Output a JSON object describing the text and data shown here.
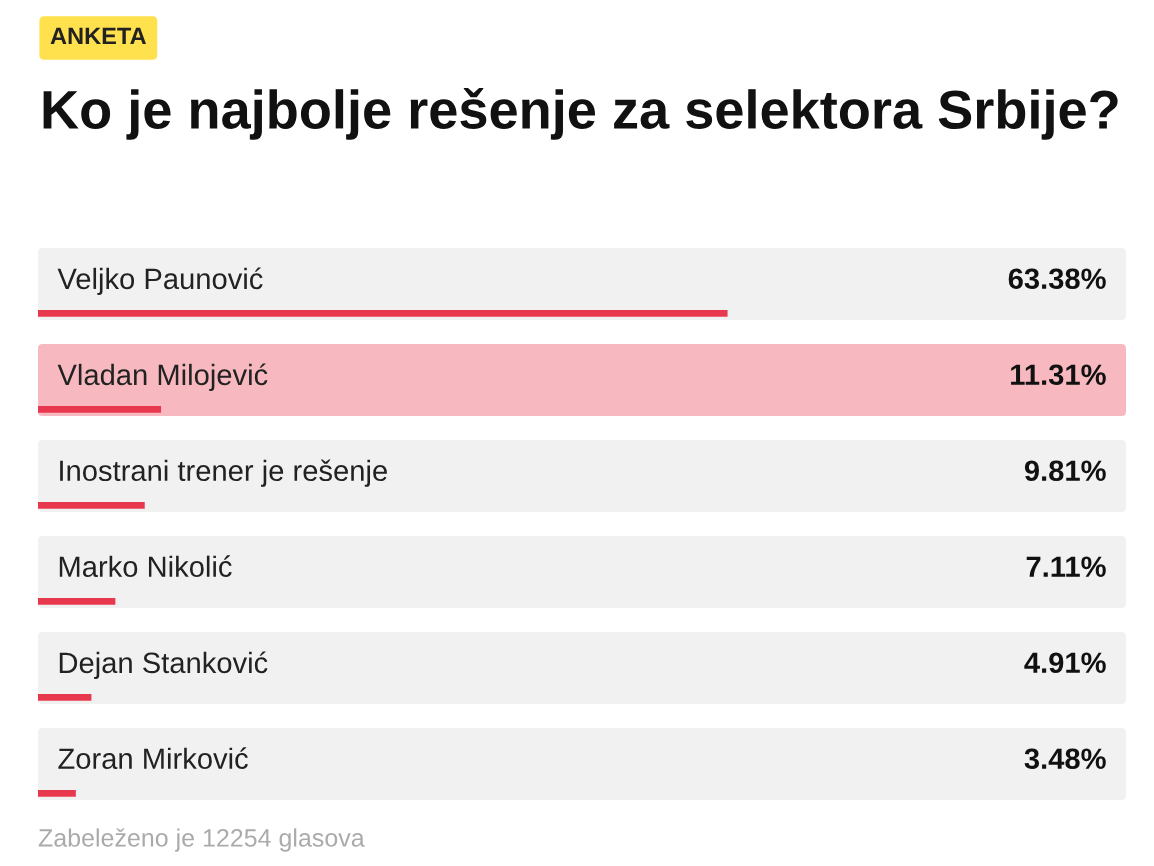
{
  "chart_data": {
    "type": "bar",
    "orientation": "horizontal",
    "title": "Ko je najbolje rešenje za selektora Srbije?",
    "annotations": [
      "ANKETA",
      "Zabeleženo je 12254 glasova"
    ],
    "categories": [
      "Veljko Paunović",
      "Vladan Milojević",
      "Inostrani trener je rešenje",
      "Marko Nikolić",
      "Dejan Stanković",
      "Zoran Mirković"
    ],
    "values": [
      63.38,
      11.31,
      9.81,
      7.11,
      4.91,
      3.48
    ],
    "value_labels": [
      "63.38%",
      "11.31%",
      "9.81%",
      "7.11%",
      "4.91%",
      "3.48%"
    ],
    "color": "#e8384f",
    "bands": [
      {
        "axis": "y",
        "from": "Vladan Milojević",
        "to": "Vladan Milojević",
        "color": "#f7b9bf"
      }
    ],
    "xlim": [
      0,
      100
    ]
  }
}
